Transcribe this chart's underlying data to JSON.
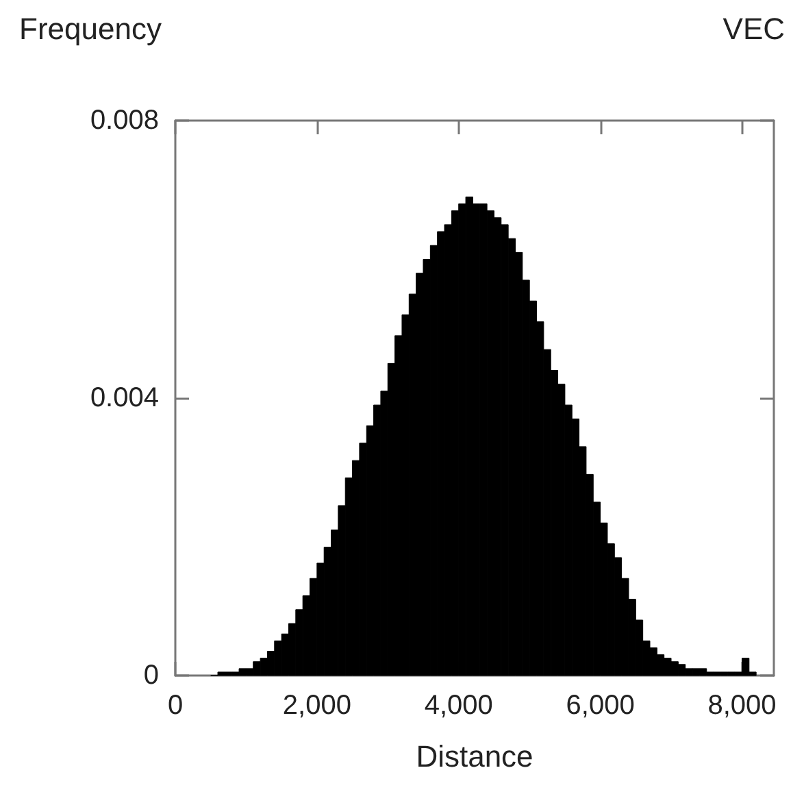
{
  "chart_data": {
    "type": "histogram",
    "ylabel": "Frequency",
    "xlabel": "Distance",
    "annotations": [
      "VEC"
    ],
    "color": "#000000",
    "bins": [
      500,
      600,
      700,
      800,
      900,
      1000,
      1100,
      1200,
      1300,
      1400,
      1500,
      1600,
      1700,
      1800,
      1900,
      2000,
      2100,
      2200,
      2300,
      2400,
      2500,
      2600,
      2700,
      2800,
      2900,
      3000,
      3100,
      3200,
      3300,
      3400,
      3500,
      3600,
      3700,
      3800,
      3900,
      4000,
      4100,
      4200,
      4300,
      4400,
      4500,
      4600,
      4700,
      4800,
      4900,
      5000,
      5100,
      5200,
      5300,
      5400,
      5500,
      5600,
      5700,
      5800,
      5900,
      6000,
      6100,
      6200,
      6300,
      6400,
      6500,
      6600,
      6700,
      6800,
      6900,
      7000,
      7100,
      7200,
      7300,
      7400,
      7500,
      7600,
      7700,
      7800,
      7900,
      8000,
      8100,
      8200
    ],
    "values": [
      0,
      5e-05,
      5e-05,
      5e-05,
      0.0001,
      0.0001,
      0.0002,
      0.00025,
      0.00035,
      0.0005,
      0.0006,
      0.00075,
      0.00095,
      0.00115,
      0.0014,
      0.00162,
      0.00185,
      0.0021,
      0.00245,
      0.00285,
      0.0031,
      0.00335,
      0.0036,
      0.0039,
      0.0041,
      0.0045,
      0.0049,
      0.0052,
      0.0055,
      0.0058,
      0.006,
      0.0062,
      0.0064,
      0.0065,
      0.0067,
      0.0068,
      0.0069,
      0.0068,
      0.0068,
      0.0067,
      0.0066,
      0.0065,
      0.0063,
      0.0061,
      0.0057,
      0.0054,
      0.0051,
      0.0047,
      0.0044,
      0.0042,
      0.0039,
      0.0037,
      0.0033,
      0.0029,
      0.0025,
      0.0022,
      0.0019,
      0.0017,
      0.0014,
      0.0011,
      0.0008,
      0.0005,
      0.0004,
      0.0003,
      0.00025,
      0.0002,
      0.00016,
      0.0001,
      0.0001,
      0.0001,
      5e-05,
      5e-05,
      5e-05,
      5e-05,
      5e-05,
      0.00025,
      5e-05
    ],
    "xlim": [
      0,
      8450
    ],
    "xticks": [
      0,
      {
        "value": 2000,
        "label": "2,000"
      },
      {
        "value": 4000,
        "label": "4,000"
      },
      {
        "value": 6000,
        "label": "6,000"
      },
      {
        "value": 8000,
        "label": "8,000"
      }
    ],
    "ylim": [
      0,
      0.008
    ],
    "yticks": [
      0,
      0.004,
      0.008
    ],
    "grid": false
  }
}
